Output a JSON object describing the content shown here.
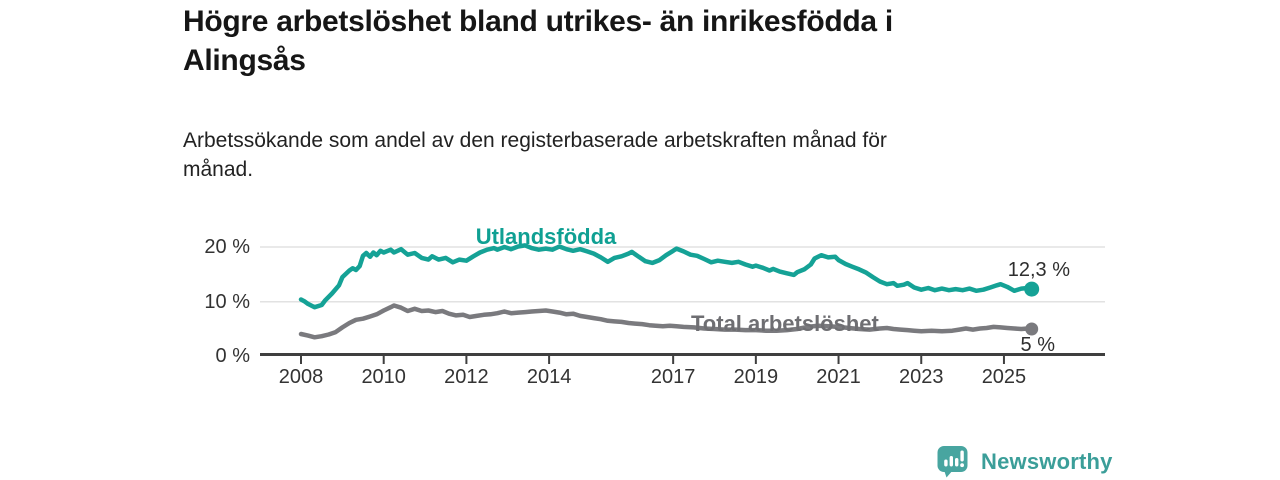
{
  "header": {
    "title": "Högre arbetslöshet bland utrikes- än inrikesfödda i\nAlingsås",
    "subtitle": "Arbetssökande som andel av den registerbaserade arbetskraften månad för\nmånad."
  },
  "footer": {
    "brand": "Newsworthy"
  },
  "colors": {
    "utlandsfodda_line": "#15a296",
    "total_line": "#7a7a7e",
    "gridline": "#e2e2e2",
    "axis": "#3f3f3f",
    "tick_text": "#333333",
    "brand_teal": "#3b9e99"
  },
  "chart_data": {
    "type": "line",
    "title": "Högre arbetslöshet bland utrikes- än inrikesfödda i Alingsås",
    "xlabel": "",
    "ylabel": "",
    "x_range": [
      2008,
      2025.7
    ],
    "ylim": [
      0,
      22
    ],
    "grid": "horizontal",
    "x_ticks": [
      {
        "year": 2008,
        "label": "2008"
      },
      {
        "year": 2010,
        "label": "2010"
      },
      {
        "year": 2012,
        "label": "2012"
      },
      {
        "year": 2014,
        "label": "2014"
      },
      {
        "year": 2017,
        "label": "2017"
      },
      {
        "year": 2019,
        "label": "2019"
      },
      {
        "year": 2021,
        "label": "2021"
      },
      {
        "year": 2023,
        "label": "2023"
      },
      {
        "year": 2025,
        "label": "2025"
      }
    ],
    "y_ticks": [
      {
        "value": 0,
        "label": "0 %"
      },
      {
        "value": 10,
        "label": "10 %"
      },
      {
        "value": 20,
        "label": "20 %"
      }
    ],
    "series": [
      {
        "name": "Utlandsfödda",
        "color": "#15a296",
        "end_label": "12,3 %",
        "end_value": 12.3,
        "points": [
          [
            2008.0,
            10.4
          ],
          [
            2008.08,
            10.1
          ],
          [
            2008.17,
            9.6
          ],
          [
            2008.33,
            9.0
          ],
          [
            2008.5,
            9.4
          ],
          [
            2008.58,
            10.2
          ],
          [
            2008.75,
            11.5
          ],
          [
            2008.92,
            13.0
          ],
          [
            2009.0,
            14.5
          ],
          [
            2009.17,
            15.7
          ],
          [
            2009.25,
            16.1
          ],
          [
            2009.33,
            15.8
          ],
          [
            2009.42,
            16.5
          ],
          [
            2009.5,
            18.4
          ],
          [
            2009.58,
            18.9
          ],
          [
            2009.67,
            18.2
          ],
          [
            2009.75,
            19.0
          ],
          [
            2009.83,
            18.5
          ],
          [
            2009.92,
            19.3
          ],
          [
            2010.0,
            19.0
          ],
          [
            2010.17,
            19.5
          ],
          [
            2010.25,
            19.0
          ],
          [
            2010.42,
            19.6
          ],
          [
            2010.58,
            18.6
          ],
          [
            2010.75,
            18.9
          ],
          [
            2010.92,
            18.0
          ],
          [
            2011.08,
            17.7
          ],
          [
            2011.17,
            18.3
          ],
          [
            2011.33,
            17.7
          ],
          [
            2011.5,
            18.0
          ],
          [
            2011.67,
            17.2
          ],
          [
            2011.83,
            17.7
          ],
          [
            2012.0,
            17.5
          ],
          [
            2012.17,
            18.3
          ],
          [
            2012.33,
            19.0
          ],
          [
            2012.5,
            19.5
          ],
          [
            2012.67,
            19.8
          ],
          [
            2012.75,
            19.5
          ],
          [
            2012.92,
            20.0
          ],
          [
            2013.08,
            19.6
          ],
          [
            2013.25,
            20.1
          ],
          [
            2013.42,
            20.3
          ],
          [
            2013.58,
            19.8
          ],
          [
            2013.75,
            19.5
          ],
          [
            2013.92,
            19.7
          ],
          [
            2014.08,
            19.5
          ],
          [
            2014.25,
            20.1
          ],
          [
            2014.42,
            19.6
          ],
          [
            2014.58,
            19.3
          ],
          [
            2014.75,
            19.6
          ],
          [
            2014.92,
            19.2
          ],
          [
            2015.08,
            18.8
          ],
          [
            2015.25,
            18.1
          ],
          [
            2015.42,
            17.3
          ],
          [
            2015.58,
            18.0
          ],
          [
            2015.75,
            18.3
          ],
          [
            2015.92,
            18.8
          ],
          [
            2016.0,
            19.1
          ],
          [
            2016.17,
            18.2
          ],
          [
            2016.33,
            17.4
          ],
          [
            2016.5,
            17.1
          ],
          [
            2016.67,
            17.6
          ],
          [
            2016.83,
            18.5
          ],
          [
            2017.0,
            19.3
          ],
          [
            2017.08,
            19.7
          ],
          [
            2017.25,
            19.2
          ],
          [
            2017.42,
            18.6
          ],
          [
            2017.58,
            18.4
          ],
          [
            2017.75,
            17.8
          ],
          [
            2017.92,
            17.2
          ],
          [
            2018.08,
            17.5
          ],
          [
            2018.25,
            17.3
          ],
          [
            2018.42,
            17.1
          ],
          [
            2018.58,
            17.3
          ],
          [
            2018.75,
            16.8
          ],
          [
            2018.92,
            16.4
          ],
          [
            2019.0,
            16.6
          ],
          [
            2019.17,
            16.2
          ],
          [
            2019.33,
            15.7
          ],
          [
            2019.42,
            16.0
          ],
          [
            2019.58,
            15.5
          ],
          [
            2019.75,
            15.2
          ],
          [
            2019.92,
            14.9
          ],
          [
            2020.0,
            15.4
          ],
          [
            2020.17,
            15.9
          ],
          [
            2020.33,
            16.8
          ],
          [
            2020.42,
            17.9
          ],
          [
            2020.58,
            18.5
          ],
          [
            2020.75,
            18.1
          ],
          [
            2020.92,
            18.2
          ],
          [
            2021.0,
            17.6
          ],
          [
            2021.17,
            16.9
          ],
          [
            2021.33,
            16.4
          ],
          [
            2021.5,
            15.9
          ],
          [
            2021.67,
            15.3
          ],
          [
            2021.83,
            14.5
          ],
          [
            2022.0,
            13.7
          ],
          [
            2022.17,
            13.2
          ],
          [
            2022.33,
            13.4
          ],
          [
            2022.42,
            12.9
          ],
          [
            2022.58,
            13.1
          ],
          [
            2022.67,
            13.4
          ],
          [
            2022.83,
            12.6
          ],
          [
            2023.0,
            12.2
          ],
          [
            2023.17,
            12.5
          ],
          [
            2023.33,
            12.1
          ],
          [
            2023.5,
            12.4
          ],
          [
            2023.67,
            12.1
          ],
          [
            2023.83,
            12.3
          ],
          [
            2024.0,
            12.1
          ],
          [
            2024.17,
            12.4
          ],
          [
            2024.33,
            12.0
          ],
          [
            2024.5,
            12.2
          ],
          [
            2024.67,
            12.6
          ],
          [
            2024.83,
            13.0
          ],
          [
            2024.92,
            13.2
          ],
          [
            2025.08,
            12.7
          ],
          [
            2025.25,
            12.0
          ],
          [
            2025.42,
            12.4
          ],
          [
            2025.58,
            12.5
          ],
          [
            2025.67,
            12.3
          ]
        ]
      },
      {
        "name": "Total arbetslöshet",
        "color": "#7a7a7e",
        "end_label": "5 %",
        "end_value": 5.0,
        "points": [
          [
            2008.0,
            4.1
          ],
          [
            2008.17,
            3.8
          ],
          [
            2008.33,
            3.5
          ],
          [
            2008.5,
            3.7
          ],
          [
            2008.67,
            4.0
          ],
          [
            2008.83,
            4.4
          ],
          [
            2009.0,
            5.3
          ],
          [
            2009.17,
            6.1
          ],
          [
            2009.33,
            6.7
          ],
          [
            2009.5,
            6.9
          ],
          [
            2009.67,
            7.3
          ],
          [
            2009.83,
            7.7
          ],
          [
            2010.0,
            8.4
          ],
          [
            2010.17,
            9.0
          ],
          [
            2010.25,
            9.3
          ],
          [
            2010.42,
            8.9
          ],
          [
            2010.58,
            8.3
          ],
          [
            2010.75,
            8.7
          ],
          [
            2010.92,
            8.3
          ],
          [
            2011.08,
            8.4
          ],
          [
            2011.25,
            8.1
          ],
          [
            2011.42,
            8.3
          ],
          [
            2011.58,
            7.8
          ],
          [
            2011.75,
            7.5
          ],
          [
            2011.92,
            7.6
          ],
          [
            2012.08,
            7.2
          ],
          [
            2012.25,
            7.4
          ],
          [
            2012.42,
            7.6
          ],
          [
            2012.58,
            7.7
          ],
          [
            2012.75,
            7.9
          ],
          [
            2012.92,
            8.2
          ],
          [
            2013.08,
            7.9
          ],
          [
            2013.25,
            8.0
          ],
          [
            2013.42,
            8.1
          ],
          [
            2013.58,
            8.2
          ],
          [
            2013.75,
            8.3
          ],
          [
            2013.92,
            8.4
          ],
          [
            2014.08,
            8.2
          ],
          [
            2014.25,
            8.0
          ],
          [
            2014.42,
            7.7
          ],
          [
            2014.58,
            7.8
          ],
          [
            2014.75,
            7.4
          ],
          [
            2014.92,
            7.2
          ],
          [
            2015.08,
            7.0
          ],
          [
            2015.25,
            6.8
          ],
          [
            2015.42,
            6.5
          ],
          [
            2015.58,
            6.4
          ],
          [
            2015.75,
            6.3
          ],
          [
            2015.92,
            6.1
          ],
          [
            2016.08,
            6.0
          ],
          [
            2016.25,
            5.9
          ],
          [
            2016.42,
            5.7
          ],
          [
            2016.58,
            5.6
          ],
          [
            2016.75,
            5.5
          ],
          [
            2016.92,
            5.6
          ],
          [
            2017.08,
            5.5
          ],
          [
            2017.25,
            5.4
          ],
          [
            2017.5,
            5.3
          ],
          [
            2017.75,
            5.1
          ],
          [
            2018.0,
            5.0
          ],
          [
            2018.25,
            4.9
          ],
          [
            2018.5,
            4.9
          ],
          [
            2018.75,
            4.8
          ],
          [
            2019.0,
            4.8
          ],
          [
            2019.25,
            4.7
          ],
          [
            2019.5,
            4.7
          ],
          [
            2019.75,
            4.8
          ],
          [
            2020.0,
            5.0
          ],
          [
            2020.25,
            5.4
          ],
          [
            2020.5,
            5.6
          ],
          [
            2020.75,
            5.5
          ],
          [
            2021.0,
            5.4
          ],
          [
            2021.25,
            5.2
          ],
          [
            2021.5,
            5.0
          ],
          [
            2021.75,
            4.9
          ],
          [
            2022.0,
            5.1
          ],
          [
            2022.17,
            5.2
          ],
          [
            2022.33,
            5.0
          ],
          [
            2022.5,
            4.9
          ],
          [
            2022.67,
            4.8
          ],
          [
            2022.83,
            4.7
          ],
          [
            2023.0,
            4.6
          ],
          [
            2023.25,
            4.7
          ],
          [
            2023.5,
            4.6
          ],
          [
            2023.75,
            4.7
          ],
          [
            2023.92,
            4.9
          ],
          [
            2024.08,
            5.1
          ],
          [
            2024.25,
            4.9
          ],
          [
            2024.42,
            5.1
          ],
          [
            2024.58,
            5.2
          ],
          [
            2024.75,
            5.4
          ],
          [
            2024.92,
            5.3
          ],
          [
            2025.08,
            5.2
          ],
          [
            2025.25,
            5.1
          ],
          [
            2025.42,
            5.0
          ],
          [
            2025.58,
            5.1
          ],
          [
            2025.67,
            5.0
          ]
        ]
      }
    ]
  }
}
